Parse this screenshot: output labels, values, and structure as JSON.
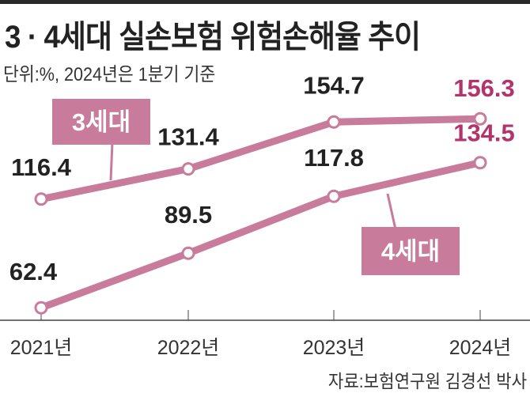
{
  "title": "3 · 4세대 실손보험 위험손해율 추이",
  "subtitle": "단위:%, 2024년은 1분기 기준",
  "source": "자료:보험연구원 김경선 박사",
  "colors": {
    "line": "#c97b9b",
    "highlight": "#b5336b",
    "text": "#222222",
    "axis": "#444444"
  },
  "chart_data": {
    "type": "line",
    "categories": [
      "2021년",
      "2022년",
      "2023년",
      "2024년"
    ],
    "series": [
      {
        "name": "3세대",
        "values": [
          116.4,
          131.4,
          154.7,
          156.3
        ],
        "labels": [
          "116.4",
          "131.4",
          "154.7",
          "156.3"
        ]
      },
      {
        "name": "4세대",
        "values": [
          62.4,
          89.5,
          117.8,
          134.5
        ],
        "labels": [
          "62.4",
          "89.5",
          "117.8",
          "134.5"
        ]
      }
    ],
    "ylabel": "",
    "unit": "%",
    "grid": false,
    "legend": "inline callout labels"
  }
}
